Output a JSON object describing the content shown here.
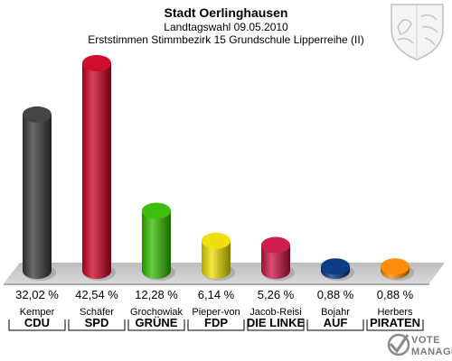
{
  "title": "Stadt Oerlinghausen",
  "subtitle1": "Landtagswahl 09.05.2010",
  "subtitle2": "Erststimmen Stimmbezirk 15 Grundschule Lipperreihe (II)",
  "watermark": {
    "line1": "VOTE",
    "line2": "MANAGER"
  },
  "chart_data": {
    "type": "bar",
    "title": "Stadt Oerlinghausen",
    "categories": [
      "CDU",
      "SPD",
      "GRÜNE",
      "FDP",
      "DIE LINKE",
      "AUF",
      "PIRATEN"
    ],
    "candidates": [
      "Kemper",
      "Schäfer",
      "Grochowiak",
      "Pieper-von",
      "Jacob-Reisi",
      "Bojahr",
      "Herbers"
    ],
    "values": [
      32.02,
      42.54,
      12.28,
      6.14,
      5.26,
      0.88,
      0.88
    ],
    "value_labels": [
      "32,02 %",
      "42,54 %",
      "12,28 %",
      "6,14 %",
      "5,26 %",
      "0,88 %",
      "0,88 %"
    ],
    "colors": [
      "#3a3a3a",
      "#cc0022",
      "#33bb00",
      "#eedd00",
      "#cc1144",
      "#003380",
      "#ff8800"
    ],
    "ylim": [
      0,
      42.54
    ],
    "grid": false,
    "legend": "none"
  }
}
